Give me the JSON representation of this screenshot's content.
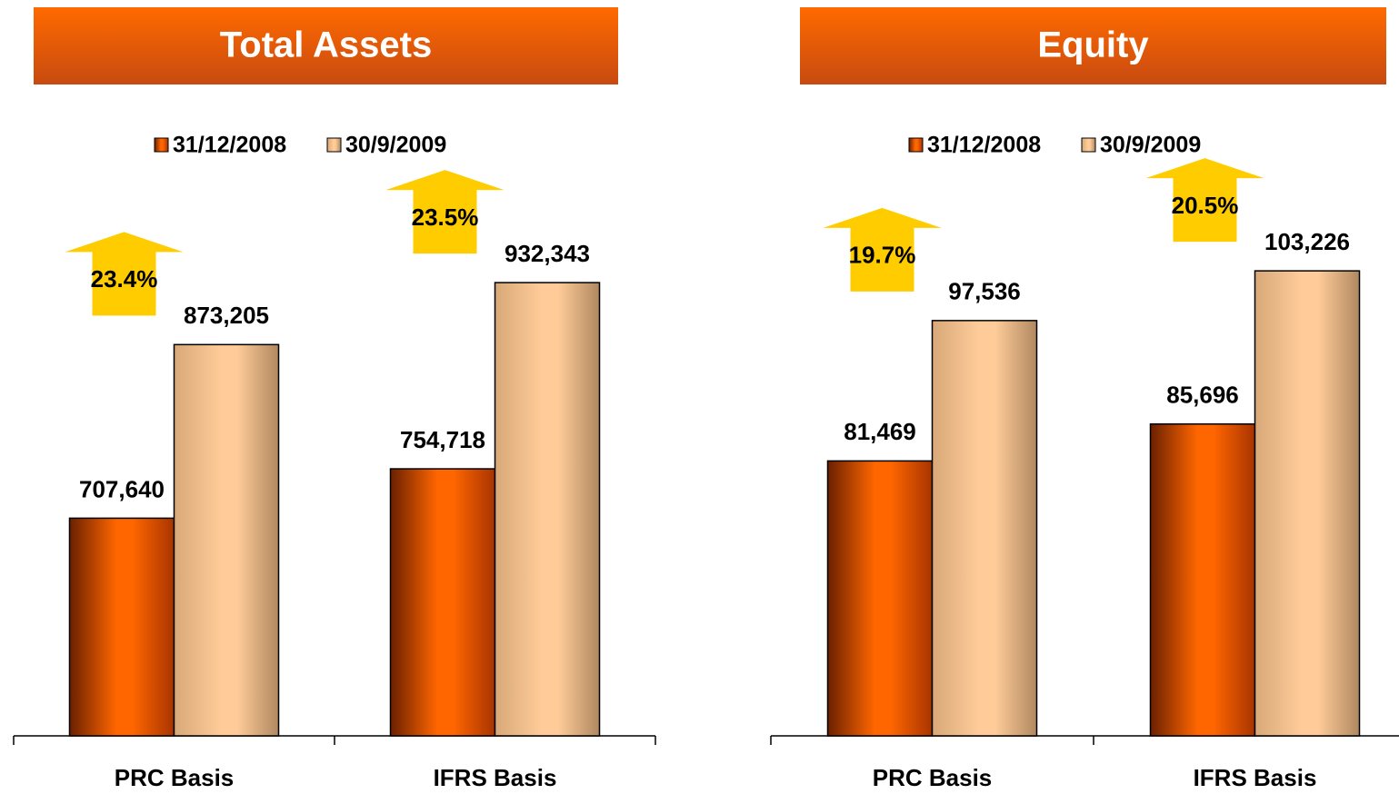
{
  "chart_data": [
    {
      "type": "bar",
      "title": "Total Assets",
      "categories": [
        "PRC Basis",
        "IFRS Basis"
      ],
      "series": [
        {
          "name": "31/12/2008",
          "color": "#ff6600",
          "values": [
            707640,
            754718
          ],
          "value_labels": [
            "707,640",
            "754,718"
          ]
        },
        {
          "name": "30/9/2009",
          "color": "#ffcc99",
          "values": [
            873205,
            932343
          ],
          "value_labels": [
            "873,205",
            "932,343"
          ]
        }
      ],
      "growth_labels": [
        "23.4%",
        "23.5%"
      ],
      "ylim": [
        500000,
        1000000
      ]
    },
    {
      "type": "bar",
      "title": "Equity",
      "categories": [
        "PRC Basis",
        "IFRS Basis"
      ],
      "series": [
        {
          "name": "31/12/2008",
          "color": "#ff6600",
          "values": [
            81469,
            85696
          ],
          "value_labels": [
            "81,469",
            "85,696"
          ]
        },
        {
          "name": "30/9/2009",
          "color": "#ffcc99",
          "values": [
            97536,
            103226
          ],
          "value_labels": [
            "97,536",
            "103,226"
          ]
        }
      ],
      "growth_labels": [
        "19.7%",
        "20.5%"
      ],
      "ylim": [
        50000,
        110000
      ]
    }
  ]
}
